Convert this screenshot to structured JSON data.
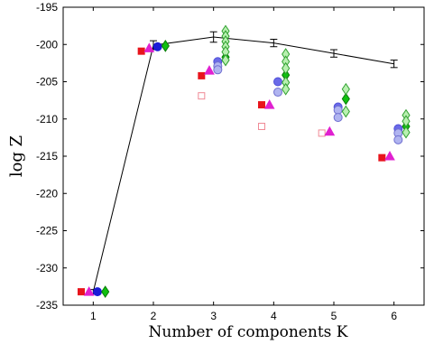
{
  "chart_data": {
    "type": "scatter",
    "title": "",
    "xlabel": "Number of components K",
    "ylabel": "log Z",
    "xlim": [
      0.5,
      6.5
    ],
    "ylim": [
      -235,
      -195
    ],
    "xticks": [
      1,
      2,
      3,
      4,
      5,
      6
    ],
    "yticks": [
      -235,
      -230,
      -225,
      -220,
      -215,
      -210,
      -205,
      -200,
      -195
    ],
    "grid": false,
    "legend": "none",
    "line_series": {
      "type": "line-errorbar",
      "color": "#000000",
      "x": [
        1,
        2,
        3,
        4,
        5,
        6
      ],
      "y": [
        -233.2,
        -200.1,
        -199.0,
        -199.8,
        -201.2,
        -202.6
      ],
      "yerr": [
        0.3,
        0.6,
        0.7,
        0.5,
        0.5,
        0.5
      ]
    },
    "series": [
      {
        "marker": "square",
        "color": "#e8141c",
        "fill": "#e8141c",
        "points": [
          [
            0.8,
            -233.2
          ],
          [
            1.8,
            -200.9
          ],
          [
            2.8,
            -204.2
          ],
          [
            3.8,
            -208.1
          ],
          [
            5.8,
            -215.2
          ]
        ]
      },
      {
        "marker": "square",
        "color": "#f08a96",
        "fill": "#ffffff",
        "points": [
          [
            2.8,
            -206.9
          ],
          [
            3.8,
            -211.0
          ],
          [
            4.8,
            -211.9
          ]
        ]
      },
      {
        "marker": "triangle",
        "color": "#e020d0",
        "fill": "#e020d0",
        "points": [
          [
            0.93,
            -233.2
          ],
          [
            1.93,
            -200.5
          ],
          [
            2.93,
            -203.5
          ],
          [
            3.93,
            -208.1
          ],
          [
            4.93,
            -211.7
          ],
          [
            5.93,
            -215.0
          ]
        ]
      },
      {
        "marker": "circle",
        "color": "#1a1ad8",
        "fill": "#1a1ad8",
        "points": [
          [
            1.07,
            -233.2
          ],
          [
            2.07,
            -200.3
          ]
        ]
      },
      {
        "marker": "circle",
        "color": "#5050d8",
        "fill": "#6a6ae8",
        "points": [
          [
            3.07,
            -202.3
          ],
          [
            4.07,
            -205.0
          ],
          [
            5.07,
            -208.4
          ],
          [
            6.07,
            -211.3
          ]
        ]
      },
      {
        "marker": "circle",
        "color": "#7070d0",
        "fill": "#b0b4f0",
        "points": [
          [
            3.07,
            -202.9
          ],
          [
            3.07,
            -203.4
          ],
          [
            4.07,
            -206.4
          ],
          [
            5.07,
            -208.8
          ],
          [
            5.07,
            -209.8
          ],
          [
            6.07,
            -211.9
          ],
          [
            6.07,
            -212.8
          ]
        ]
      },
      {
        "marker": "diamond",
        "color": "#0a7a0a",
        "fill": "#10c010",
        "points": [
          [
            1.2,
            -233.2
          ],
          [
            2.2,
            -200.2
          ],
          [
            3.2,
            -201.7
          ],
          [
            4.2,
            -204.1
          ],
          [
            5.2,
            -207.3
          ],
          [
            6.2,
            -211.0
          ]
        ]
      },
      {
        "marker": "diamond",
        "color": "#30a030",
        "fill": "#b8f0b0",
        "points": [
          [
            3.2,
            -198.2
          ],
          [
            3.2,
            -198.9
          ],
          [
            3.2,
            -199.6
          ],
          [
            3.2,
            -200.3
          ],
          [
            3.2,
            -201.0
          ],
          [
            3.2,
            -202.1
          ],
          [
            4.2,
            -201.3
          ],
          [
            4.2,
            -202.3
          ],
          [
            4.2,
            -203.2
          ],
          [
            4.2,
            -205.1
          ],
          [
            4.2,
            -206.0
          ],
          [
            5.2,
            -206.0
          ],
          [
            5.2,
            -209.0
          ],
          [
            6.2,
            -209.5
          ],
          [
            6.2,
            -210.3
          ],
          [
            6.2,
            -211.8
          ]
        ]
      }
    ]
  }
}
